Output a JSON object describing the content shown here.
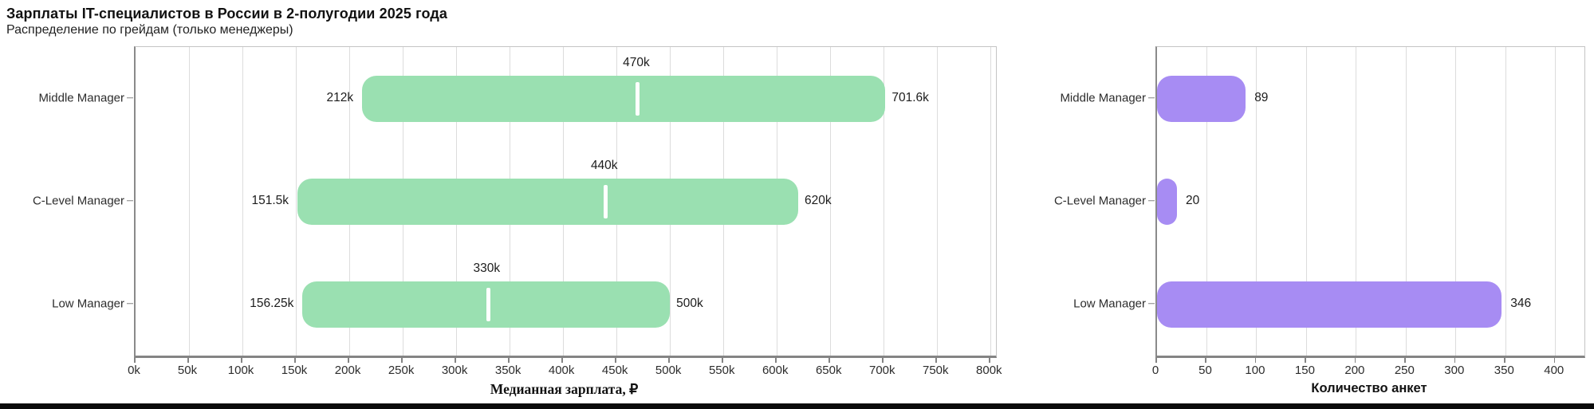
{
  "page": {
    "title": "Зарплаты IT-специалистов в России в 2-полугодии 2025 года",
    "subtitle": "Распределение по грейдам (только менеджеры)"
  },
  "colors": {
    "range_bar": "#9AE0B1",
    "median_marker": "#ffffff",
    "count_bar": "#A78CF3",
    "gridline": "#dcdcdc",
    "axis_line": "#848484",
    "text": "#1c1c1c"
  },
  "chart_data": [
    {
      "type": "bar",
      "subtype": "horizontal_range_bar",
      "categories": [
        "Middle Manager",
        "C-Level Manager",
        "Low Manager"
      ],
      "series": [
        {
          "name": "min",
          "values": [
            212,
            151.5,
            156.25
          ],
          "labels": [
            "212k",
            "151.5k",
            "156.25k"
          ]
        },
        {
          "name": "median",
          "values": [
            470,
            440,
            330
          ],
          "labels": [
            "470k",
            "440k",
            "330k"
          ]
        },
        {
          "name": "max",
          "values": [
            701.6,
            620,
            500
          ],
          "labels": [
            "701.6k",
            "620k",
            "500k"
          ]
        }
      ],
      "xlabel": "Медианная зарплата, ₽",
      "ylabel": "",
      "xlim": [
        0,
        805
      ],
      "tick_values": [
        0,
        50,
        100,
        150,
        200,
        250,
        300,
        350,
        400,
        450,
        500,
        550,
        600,
        650,
        700,
        750,
        800
      ],
      "tick_labels": [
        "0k",
        "50k",
        "100k",
        "150k",
        "200k",
        "250k",
        "300k",
        "350k",
        "400k",
        "450k",
        "500k",
        "550k",
        "600k",
        "650k",
        "700k",
        "750k",
        "800k"
      ],
      "grid": true,
      "legend": false,
      "bar_color": "#9AE0B1",
      "median_color": "#ffffff"
    },
    {
      "type": "bar",
      "subtype": "horizontal_bar",
      "categories": [
        "Middle Manager",
        "C-Level Manager",
        "Low Manager"
      ],
      "values": [
        89,
        20,
        346
      ],
      "value_labels": [
        "89",
        "20",
        "346"
      ],
      "xlabel": "Количество анкет",
      "ylabel": "",
      "xlim": [
        0,
        429
      ],
      "tick_values": [
        0,
        50,
        100,
        150,
        200,
        250,
        300,
        350,
        400
      ],
      "tick_labels": [
        "0",
        "50",
        "100",
        "150",
        "200",
        "250",
        "300",
        "350",
        "400"
      ],
      "grid": true,
      "legend": false,
      "bar_color": "#A78CF3"
    }
  ]
}
